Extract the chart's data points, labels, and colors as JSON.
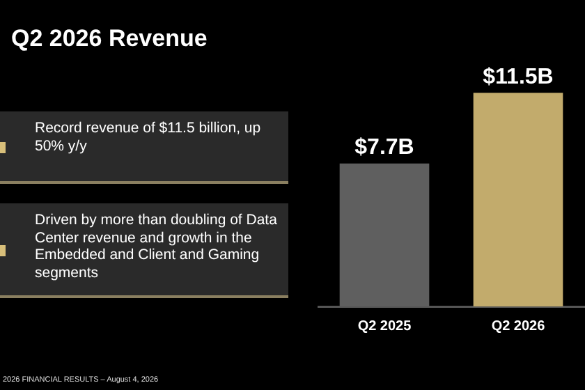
{
  "chart_data": {
    "type": "bar",
    "title": "Q2 2026 Revenue",
    "categories": [
      "Q2 2025",
      "Q2 2026"
    ],
    "values": [
      7.7,
      11.5
    ],
    "colors": [
      "#5f5f5f",
      "#c2ab6c"
    ],
    "value_labels": [
      "$7.7B",
      "$11.5B"
    ],
    "tick_labels": "x",
    "annotations": [
      "Record revenue of $11.5 billion, up 50% y/y",
      "Driven by more than doubling of Data Center revenue and growth in the Embedded and Client and Gaming segments",
      "2026 FINANCIAL RESULTS – August 4, 2026"
    ]
  }
}
